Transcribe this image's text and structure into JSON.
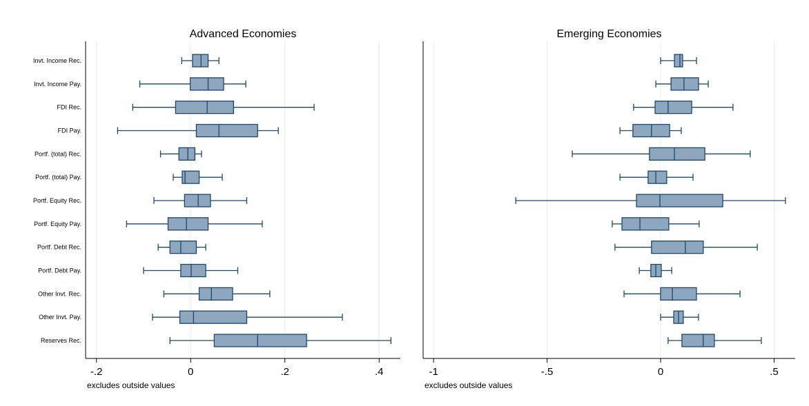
{
  "chart_data": [
    {
      "type": "box",
      "title": "Advanced Economies",
      "note": "excludes outside values",
      "categories": [
        "Invt. Income Rec.",
        "Invt. Income Pay.",
        "FDI Rec.",
        "FDI Pay.",
        "Portf. (total) Rec.",
        "Portf. (total) Pay.",
        "Portf. Equity Rec.",
        "Portf. Equity Pay.",
        "Portf. Debt Rec.",
        "Portf. Debt Pay.",
        "Other Invt. Rec.",
        "Other Invt. Pay.",
        "Reserves Rec."
      ],
      "whisker_low": [
        -0.019,
        -0.108,
        -0.123,
        -0.155,
        -0.064,
        -0.037,
        -0.078,
        -0.136,
        -0.069,
        -0.1,
        -0.057,
        -0.081,
        -0.044
      ],
      "q1": [
        0.004,
        -0.001,
        -0.032,
        0.012,
        -0.025,
        -0.018,
        -0.013,
        -0.048,
        -0.044,
        -0.021,
        0.018,
        -0.023,
        0.05
      ],
      "median": [
        0.022,
        0.037,
        0.035,
        0.06,
        -0.006,
        -0.012,
        0.016,
        -0.009,
        -0.021,
        0.001,
        0.044,
        0.006,
        0.142
      ],
      "q3": [
        0.037,
        0.07,
        0.091,
        0.142,
        0.009,
        0.018,
        0.042,
        0.037,
        0.012,
        0.032,
        0.089,
        0.119,
        0.246
      ],
      "whisker_high": [
        0.06,
        0.117,
        0.262,
        0.186,
        0.023,
        0.067,
        0.119,
        0.152,
        0.032,
        0.1,
        0.168,
        0.322,
        0.425
      ],
      "xlim": [
        -0.223,
        0.445
      ],
      "xticks": [
        {
          "value": -0.2,
          "label": "-.2"
        },
        0,
        {
          "value": 0.2,
          "label": ".2"
        },
        {
          "value": 0.4,
          "label": ".4"
        }
      ],
      "color": "#8fa7be",
      "edge_color": "#1a476f",
      "grid": true
    },
    {
      "type": "box",
      "title": "Emerging Economies",
      "note": "excludes outside values",
      "whisker_low": [
        0.0,
        -0.021,
        -0.119,
        -0.179,
        -0.389,
        -0.179,
        -0.638,
        -0.213,
        -0.201,
        -0.094,
        -0.161,
        0.0,
        0.033
      ],
      "q1": [
        0.061,
        0.046,
        -0.024,
        -0.122,
        -0.049,
        -0.055,
        -0.106,
        -0.17,
        -0.04,
        -0.043,
        0.0,
        0.058,
        0.094
      ],
      "median": [
        0.085,
        0.103,
        0.033,
        -0.04,
        0.061,
        -0.021,
        -0.003,
        -0.091,
        0.109,
        -0.021,
        0.052,
        0.079,
        0.188
      ],
      "q3": [
        0.097,
        0.167,
        0.137,
        0.04,
        0.195,
        0.027,
        0.274,
        0.036,
        0.188,
        0.003,
        0.158,
        0.1,
        0.237
      ],
      "whisker_high": [
        0.158,
        0.21,
        0.319,
        0.091,
        0.395,
        0.143,
        0.55,
        0.17,
        0.426,
        0.049,
        0.35,
        0.167,
        0.444
      ],
      "xlim": [
        -1.046,
        0.593
      ],
      "xticks": [
        -1,
        {
          "value": -0.5,
          "label": "-.5"
        },
        0,
        {
          "value": 0.5,
          "label": ".5"
        }
      ],
      "color": "#8fa7be",
      "edge_color": "#1a476f",
      "grid": true
    }
  ]
}
